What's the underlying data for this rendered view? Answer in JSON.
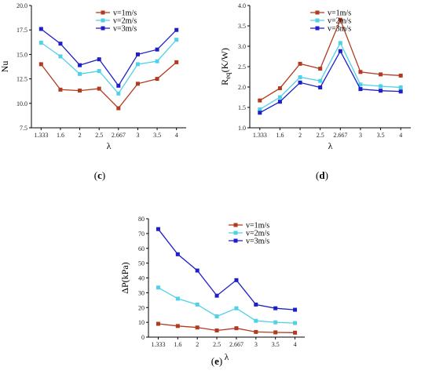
{
  "chart_data": [
    {
      "id": "c",
      "panel_label": "(c)",
      "panel_letter": "c",
      "type": "line",
      "xlabel": "λ",
      "ylabel": "Nu",
      "categories": [
        "1.333",
        "1.6",
        "2",
        "2.5",
        "2.667",
        "3",
        "3.5",
        "4"
      ],
      "ylim": [
        7.5,
        20.0
      ],
      "yticks": [
        "7.5",
        "10.0",
        "12.5",
        "15.0",
        "17.5",
        "20.0"
      ],
      "series": [
        {
          "name": "v=1m/s",
          "color": "#b23a1f",
          "marker": "square",
          "values": [
            14.0,
            11.4,
            11.3,
            11.5,
            9.5,
            12.0,
            12.5,
            14.2
          ]
        },
        {
          "name": "v=2m/s",
          "color": "#4fd2e8",
          "marker": "square",
          "values": [
            16.2,
            14.8,
            13.0,
            13.3,
            11.0,
            14.0,
            14.3,
            16.5
          ]
        },
        {
          "name": "v=3m/s",
          "color": "#1d1fc8",
          "marker": "square",
          "values": [
            17.6,
            16.1,
            13.9,
            14.5,
            11.8,
            15.0,
            15.5,
            17.5
          ]
        }
      ]
    },
    {
      "id": "d",
      "panel_label": "(d)",
      "panel_letter": "d",
      "type": "line",
      "xlabel": "λ",
      "ylabel": "Req(K/W)",
      "ylabel_main": "R",
      "ylabel_sub": "eq",
      "ylabel_unit": "(K/W)",
      "categories": [
        "1.333",
        "1.6",
        "2",
        "2.5",
        "2.667",
        "3",
        "3.5",
        "4"
      ],
      "ylim": [
        1.0,
        4.0
      ],
      "yticks": [
        "1.0",
        "1.5",
        "2.0",
        "2.5",
        "3.0",
        "3.5",
        "4.0"
      ],
      "series": [
        {
          "name": "v=1m/s",
          "color": "#b23a1f",
          "marker": "square",
          "values": [
            1.67,
            1.97,
            2.57,
            2.45,
            3.65,
            2.37,
            2.31,
            2.28
          ]
        },
        {
          "name": "v=2m/s",
          "color": "#4fd2e8",
          "marker": "square",
          "values": [
            1.45,
            1.75,
            2.24,
            2.15,
            3.08,
            2.06,
            2.02,
            1.99
          ]
        },
        {
          "name": "v=3m/s",
          "color": "#1d1fc8",
          "marker": "square",
          "values": [
            1.37,
            1.64,
            2.11,
            1.99,
            2.88,
            1.95,
            1.91,
            1.89
          ]
        }
      ]
    },
    {
      "id": "e",
      "panel_label": "(e)",
      "panel_letter": "e",
      "type": "line",
      "xlabel": "λ",
      "ylabel": "ΔP(kPa)",
      "categories": [
        "1.333",
        "1.6",
        "2",
        "2.5",
        "2.667",
        "3",
        "3.5",
        "4"
      ],
      "ylim": [
        0,
        80
      ],
      "yticks": [
        "0",
        "10",
        "20",
        "30",
        "40",
        "50",
        "60",
        "70",
        "80"
      ],
      "series": [
        {
          "name": "v=1m/s",
          "color": "#b23a1f",
          "marker": "square",
          "values": [
            9,
            7.5,
            6.5,
            4.5,
            6,
            3.5,
            3.2,
            3.0
          ]
        },
        {
          "name": "v=2m/s",
          "color": "#4fd2e8",
          "marker": "square",
          "values": [
            33.5,
            26,
            22,
            14,
            19.5,
            11,
            10,
            9.5
          ]
        },
        {
          "name": "v=3m/s",
          "color": "#1d1fc8",
          "marker": "square",
          "values": [
            73,
            56,
            45,
            28,
            38.5,
            22,
            19.5,
            18.5
          ]
        }
      ]
    }
  ]
}
